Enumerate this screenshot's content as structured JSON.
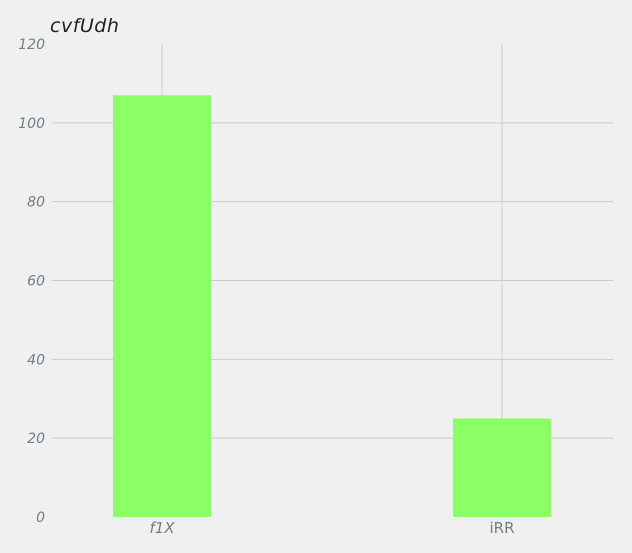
{
  "chart_data": {
    "type": "bar",
    "title": "cvfUdh",
    "xlabel": "",
    "ylabel": "",
    "categories": [
      "f1X",
      "iRR"
    ],
    "values": [
      107,
      25
    ],
    "ylim": [
      0,
      120
    ],
    "yticks": [
      "0",
      "20",
      "40",
      "60",
      "80",
      "100",
      "120"
    ],
    "grid": true,
    "legend": "none",
    "colors": {
      "bar": "#8cff66",
      "background": "#f0f0f0",
      "grid": "#cbcbcb",
      "tick_text": "#6d7f87",
      "title_text": "#222222"
    }
  }
}
